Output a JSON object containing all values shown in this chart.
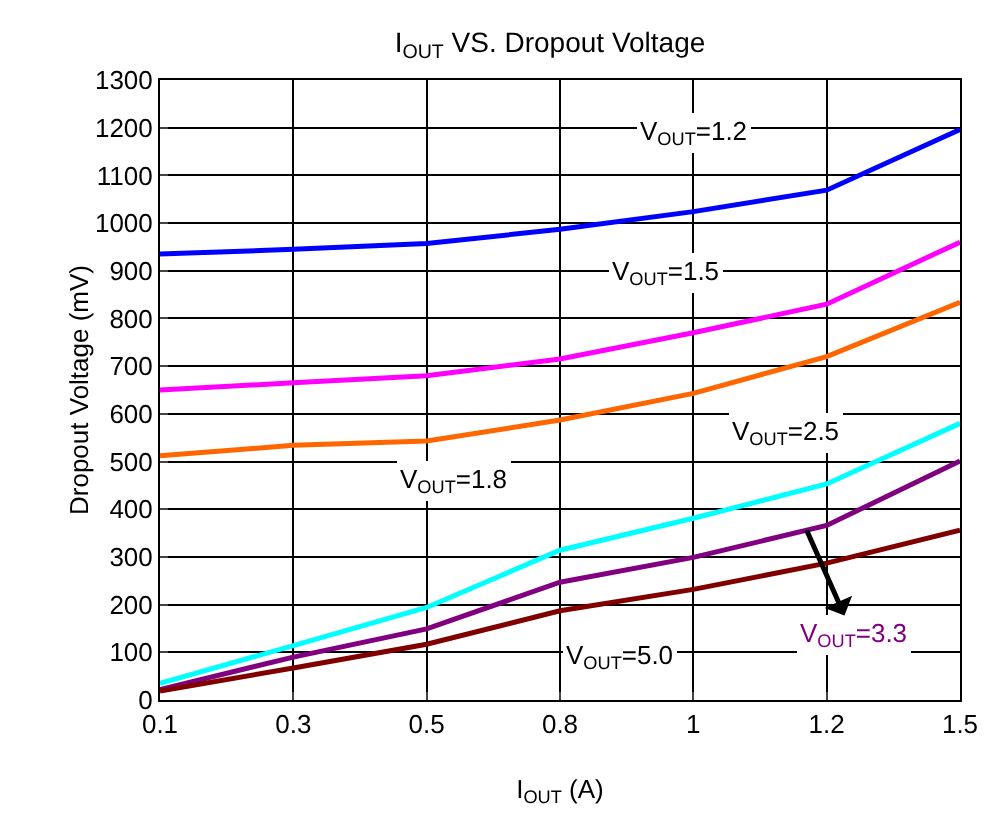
{
  "chart_data": {
    "type": "line",
    "title": "I$_{OUT}$ VS. Dropout Voltage",
    "xlabel": "I$_{OUT}$ (A)",
    "ylabel": "Dropout Voltage (mV)",
    "categories": [
      "0.1",
      "0.3",
      "0.5",
      "0.8",
      "1",
      "1.2",
      "1.5"
    ],
    "series": [
      {
        "name": "V$_{OUT}$=1.2",
        "color": "#0000ff",
        "values": [
          935,
          945,
          957,
          987,
          1024,
          1069,
          1196
        ]
      },
      {
        "name": "V$_{OUT}$=1.5",
        "color": "#ff00ff",
        "values": [
          650,
          665,
          680,
          715,
          770,
          830,
          960
        ]
      },
      {
        "name": "V$_{OUT}$=1.8",
        "color": "#ff6600",
        "values": [
          512,
          534,
          543,
          587,
          643,
          720,
          834
        ]
      },
      {
        "name": "V$_{OUT}$=2.5",
        "color": "#00ffff",
        "values": [
          35,
          114,
          194,
          314,
          381,
          453,
          580
        ]
      },
      {
        "name": "V$_{OUT}$=3.3",
        "color": "#800080",
        "values": [
          22,
          90,
          149,
          247,
          299,
          366,
          501
        ]
      },
      {
        "name": "V$_{OUT}$=5.0",
        "color": "#800000",
        "values": [
          19,
          67,
          117,
          187,
          232,
          287,
          356
        ]
      }
    ],
    "ylim": [
      0,
      1300
    ],
    "yticks": [
      0,
      100,
      200,
      300,
      400,
      500,
      600,
      700,
      800,
      900,
      1000,
      1100,
      1200,
      1300
    ],
    "grid": true,
    "legend": false,
    "marker": "none",
    "line_style": "solid"
  }
}
